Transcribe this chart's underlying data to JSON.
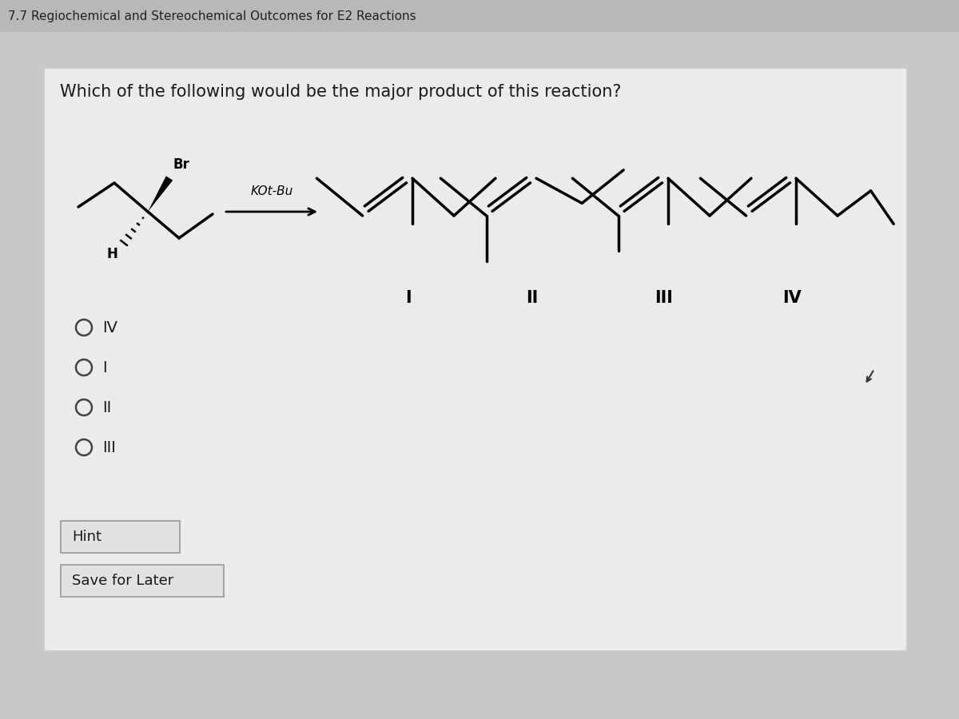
{
  "title": "Which of the following would be the major product of this reaction?",
  "header": "7.7 Regiochemical and Stereochemical Outcomes for E2 Reactions",
  "reagent": "KOt-Bu",
  "radio_options": [
    "IV",
    "I",
    "II",
    "III"
  ],
  "hint_text": "Hint",
  "save_text": "Save for Later",
  "bg_color": "#c8c8c8",
  "card_color": "#ececec",
  "text_color": "#1a1a1a",
  "border_color": "#bbbbbb",
  "roman_labels": [
    "I",
    "II",
    "III",
    "IV"
  ]
}
